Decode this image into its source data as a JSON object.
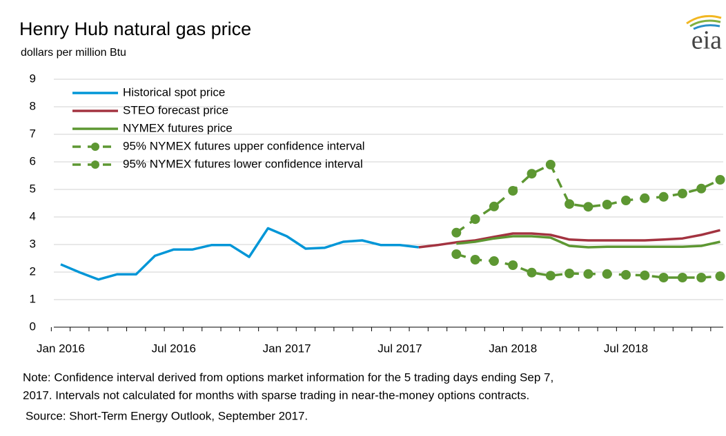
{
  "logo": "eia",
  "chart_data": {
    "type": "line",
    "title": "Henry Hub natural  gas price",
    "subtitle": "dollars per million Btu",
    "note": [
      "Note: Confidence interval derived from options market information for the 5 trading days ending Sep 7,",
      "2017. Intervals not calculated for months with sparse trading in near-the-money options contracts."
    ],
    "source": "Source: Short-Term Energy Outlook, September 2017.",
    "categories": [
      "Jan 2016",
      null,
      null,
      null,
      null,
      null,
      "Jul 2016",
      null,
      null,
      null,
      null,
      null,
      "Jan 2017",
      null,
      null,
      null,
      null,
      null,
      "Jul 2017",
      null,
      null,
      null,
      null,
      null,
      "Jan 2018",
      null,
      null,
      null,
      null,
      null,
      "Jul 2018",
      null,
      null,
      null,
      null,
      null
    ],
    "ylim": [
      0,
      9
    ],
    "yticks": [
      0,
      1,
      2,
      3,
      4,
      5,
      6,
      7,
      8,
      9
    ],
    "grid": true,
    "legend": "top-left",
    "series": [
      {
        "name": "Historical spot price",
        "color": "#0096d7",
        "dash": false,
        "markers": false,
        "values": [
          2.28,
          1.99,
          1.73,
          1.92,
          1.92,
          2.59,
          2.82,
          2.82,
          2.98,
          2.98,
          2.55,
          3.59,
          3.3,
          2.85,
          2.88,
          3.1,
          3.15,
          2.98,
          2.98,
          2.9,
          null,
          null,
          null,
          null,
          null,
          null,
          null,
          null,
          null,
          null,
          null,
          null,
          null,
          null,
          null,
          null
        ]
      },
      {
        "name": "STEO forecast price",
        "color": "#a33340",
        "dash": false,
        "markers": false,
        "values": [
          null,
          null,
          null,
          null,
          null,
          null,
          null,
          null,
          null,
          null,
          null,
          null,
          null,
          null,
          null,
          null,
          null,
          null,
          null,
          2.9,
          2.98,
          3.08,
          3.15,
          3.28,
          3.4,
          3.4,
          3.35,
          3.18,
          3.15,
          3.15,
          3.15,
          3.15,
          3.18,
          3.22,
          3.35,
          3.52
        ]
      },
      {
        "name": "NYMEX futures price",
        "color": "#5d9732",
        "dash": false,
        "markers": false,
        "values": [
          null,
          null,
          null,
          null,
          null,
          null,
          null,
          null,
          null,
          null,
          null,
          null,
          null,
          null,
          null,
          null,
          null,
          null,
          null,
          null,
          null,
          3.03,
          3.1,
          3.22,
          3.3,
          3.3,
          3.25,
          2.95,
          2.9,
          2.92,
          2.92,
          2.92,
          2.92,
          2.92,
          2.95,
          3.1
        ]
      },
      {
        "name": "95% NYMEX futures upper confidence interval",
        "color": "#5d9732",
        "dash": true,
        "markers": true,
        "values": [
          null,
          null,
          null,
          null,
          null,
          null,
          null,
          null,
          null,
          null,
          null,
          null,
          null,
          null,
          null,
          null,
          null,
          null,
          null,
          null,
          null,
          3.43,
          3.92,
          4.38,
          4.95,
          5.57,
          5.9,
          4.47,
          4.37,
          4.45,
          4.6,
          4.68,
          4.73,
          4.85,
          5.03,
          5.35
        ]
      },
      {
        "name": "95% NYMEX futures lower confidence interval",
        "color": "#5d9732",
        "dash": true,
        "markers": true,
        "values": [
          null,
          null,
          null,
          null,
          null,
          null,
          null,
          null,
          null,
          null,
          null,
          null,
          null,
          null,
          null,
          null,
          null,
          null,
          null,
          null,
          null,
          2.65,
          2.45,
          2.4,
          2.25,
          1.98,
          1.87,
          1.95,
          1.93,
          1.93,
          1.9,
          1.88,
          1.8,
          1.8,
          1.8,
          1.85
        ]
      }
    ]
  }
}
